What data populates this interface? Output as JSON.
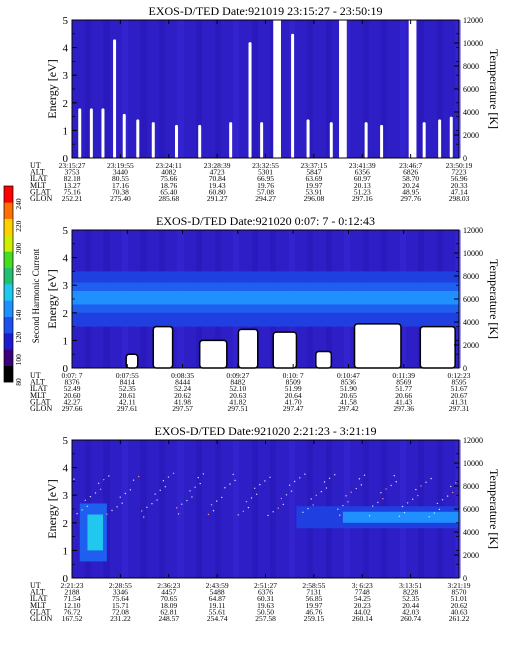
{
  "colorbar": {
    "label": "Second Harmonic Current",
    "ticks": [
      "80",
      "100",
      "120",
      "140",
      "160",
      "180",
      "200",
      "220",
      "240"
    ],
    "colors": [
      "#000000",
      "#3a007a",
      "#1c1ccc",
      "#1e50ee",
      "#2090ff",
      "#21c8ee",
      "#22c070",
      "#44dd22",
      "#ccee00",
      "#ffd000",
      "#ff7000",
      "#ff0000"
    ]
  },
  "chart_data": [
    {
      "type": "heatmap",
      "title": "EXOS-D/TED  Date:921019  23:15:27 - 23:50:19",
      "ylabel": "Energy [eV]",
      "ylabel_right": "Temperature [K]",
      "ylim": [
        0,
        5
      ],
      "ylim_right": [
        0,
        12000
      ],
      "yticks": [
        0,
        1,
        2,
        3,
        4,
        5
      ],
      "yticks_right": [
        0,
        2000,
        4000,
        6000,
        8000,
        10000,
        12000
      ],
      "background_color": "#2e1ec6",
      "data_gaps": [
        [
          0.52,
          0.54
        ],
        [
          0.69,
          0.71
        ],
        [
          0.87,
          0.89
        ]
      ],
      "white_spikes": [
        {
          "t": 0.02,
          "e": 1.8
        },
        {
          "t": 0.05,
          "e": 1.8
        },
        {
          "t": 0.08,
          "e": 1.8
        },
        {
          "t": 0.11,
          "e": 4.3
        },
        {
          "t": 0.135,
          "e": 1.6
        },
        {
          "t": 0.17,
          "e": 1.4
        },
        {
          "t": 0.21,
          "e": 1.3
        },
        {
          "t": 0.27,
          "e": 1.2
        },
        {
          "t": 0.33,
          "e": 1.2
        },
        {
          "t": 0.41,
          "e": 1.3
        },
        {
          "t": 0.46,
          "e": 4.2
        },
        {
          "t": 0.49,
          "e": 1.3
        },
        {
          "t": 0.57,
          "e": 4.5
        },
        {
          "t": 0.61,
          "e": 1.4
        },
        {
          "t": 0.67,
          "e": 1.3
        },
        {
          "t": 0.76,
          "e": 1.3
        },
        {
          "t": 0.8,
          "e": 1.2
        },
        {
          "t": 0.91,
          "e": 1.3
        },
        {
          "t": 0.95,
          "e": 1.4
        },
        {
          "t": 0.98,
          "e": 1.5
        }
      ],
      "orbit_table": {
        "rows": [
          "UT",
          "ALT",
          "ILAT",
          "MLT",
          "GLAT",
          "GLON"
        ],
        "values": [
          [
            "23:15:27",
            "23:19:55",
            "23:24:11",
            "23:28:39",
            "23:32:55",
            "23:37:15",
            "23:41:39",
            "23:46:7",
            "23:50:19"
          ],
          [
            "3753",
            "3440",
            "4082",
            "4723",
            "5301",
            "5847",
            "6356",
            "6826",
            "7223"
          ],
          [
            "82.18",
            "80.55",
            "75.66",
            "70.84",
            "66.95",
            "63.69",
            "60.97",
            "58.70",
            "56.96"
          ],
          [
            "13.27",
            "17.16",
            "18.76",
            "19.43",
            "19.76",
            "19.97",
            "20.13",
            "20.24",
            "20.33"
          ],
          [
            "75.16",
            "70.38",
            "65.40",
            "60.80",
            "57.08",
            "53.91",
            "51.23",
            "48.95",
            "47.14"
          ],
          [
            "252.21",
            "275.40",
            "285.68",
            "291.27",
            "294.27",
            "296.08",
            "297.16",
            "297.76",
            "298.03"
          ]
        ]
      }
    },
    {
      "type": "heatmap",
      "title": "EXOS-D/TED   Date:921020   0:07: 7 - 0:12:43",
      "ylabel": "Energy [eV]",
      "ylabel_right": "Temperature [K]",
      "ylim": [
        0,
        5
      ],
      "ylim_right": [
        0,
        12000
      ],
      "yticks": [
        0,
        1,
        2,
        3,
        4,
        5
      ],
      "yticks_right": [
        0,
        2000,
        4000,
        6000,
        8000,
        10000,
        12000
      ],
      "background_color": "#2e1ec6",
      "bands": [
        {
          "e0": 1.5,
          "e1": 2.0,
          "color": "#1f3fe0"
        },
        {
          "e0": 2.0,
          "e1": 2.3,
          "color": "#1f5ff0"
        },
        {
          "e0": 2.3,
          "e1": 2.8,
          "color": "#2090ff"
        },
        {
          "e0": 2.8,
          "e1": 3.1,
          "color": "#1f5ff0"
        },
        {
          "e0": 3.1,
          "e1": 3.5,
          "color": "#1f3fe0"
        }
      ],
      "white_regions": [
        {
          "t0": 0.14,
          "t1": 0.17,
          "e": 0.5
        },
        {
          "t0": 0.21,
          "t1": 0.26,
          "e": 1.5
        },
        {
          "t0": 0.33,
          "t1": 0.4,
          "e": 1.0
        },
        {
          "t0": 0.43,
          "t1": 0.48,
          "e": 1.4
        },
        {
          "t0": 0.52,
          "t1": 0.58,
          "e": 1.3
        },
        {
          "t0": 0.63,
          "t1": 0.67,
          "e": 0.6
        },
        {
          "t0": 0.73,
          "t1": 0.85,
          "e": 1.6
        },
        {
          "t0": 0.9,
          "t1": 0.99,
          "e": 1.5
        }
      ],
      "orbit_table": {
        "rows": [
          "UT",
          "ALT",
          "ILAT",
          "MLT",
          "GLAT",
          "GLON"
        ],
        "values": [
          [
            "0:07: 7",
            "0:07:55",
            "0:08:35",
            "0:09:27",
            "0:10: 7",
            "0:10:47",
            "0:11:39",
            "0:12:23"
          ],
          [
            "8376",
            "8414",
            "8444",
            "8482",
            "8509",
            "8536",
            "8569",
            "8595"
          ],
          [
            "52.49",
            "52.35",
            "52.24",
            "52.10",
            "51.99",
            "51.90",
            "51.77",
            "51.67"
          ],
          [
            "20.60",
            "20.61",
            "20.62",
            "20.63",
            "20.64",
            "20.65",
            "20.66",
            "20.67"
          ],
          [
            "42.27",
            "42.11",
            "41.98",
            "41.82",
            "41.70",
            "41.58",
            "41.43",
            "41.31"
          ],
          [
            "297.66",
            "297.61",
            "297.57",
            "297.51",
            "297.47",
            "297.42",
            "297.36",
            "297.31"
          ]
        ]
      }
    },
    {
      "type": "heatmap",
      "title": "EXOS-D/TED   Date:921020   2:21:23 - 3:21:19",
      "ylabel": "Energy [eV]",
      "ylabel_right": "Temperature [K]",
      "ylim": [
        0,
        5
      ],
      "ylim_right": [
        0,
        12000
      ],
      "yticks": [
        0,
        1,
        2,
        3,
        4,
        5
      ],
      "yticks_right": [
        0,
        2000,
        4000,
        6000,
        8000,
        10000,
        12000
      ],
      "background_color": "#2e1ec6",
      "features": [
        {
          "t0": 0.02,
          "t1": 0.09,
          "e0": 0.6,
          "e1": 2.7,
          "color": "#1f5ff0"
        },
        {
          "t0": 0.04,
          "t1": 0.08,
          "e0": 1.0,
          "e1": 2.3,
          "color": "#21c8ee"
        },
        {
          "t0": 0.58,
          "t1": 1.0,
          "e0": 1.8,
          "e1": 2.6,
          "color": "#1f3fe0"
        },
        {
          "t0": 0.7,
          "t1": 1.0,
          "e0": 2.0,
          "e1": 2.4,
          "color": "#2090ff"
        }
      ],
      "orbit_table": {
        "rows": [
          "UT",
          "ALT",
          "ILAT",
          "MLT",
          "GLAT",
          "GLON"
        ],
        "values": [
          [
            "2:21:23",
            "2:28:55",
            "2:36:23",
            "2:43:59",
            "2:51:27",
            "2:58:55",
            "3: 6:23",
            "3:13:51",
            "3:21:19"
          ],
          [
            "2188",
            "3346",
            "4457",
            "5488",
            "6376",
            "7131",
            "7748",
            "8228",
            "8570"
          ],
          [
            "71.54",
            "75.64",
            "70.65",
            "64.87",
            "60.31",
            "56.85",
            "54.25",
            "52.35",
            "51.01"
          ],
          [
            "12.10",
            "15.71",
            "18.09",
            "19.11",
            "19.63",
            "19.97",
            "20.23",
            "20.44",
            "20.62"
          ],
          [
            "76.72",
            "72.08",
            "62.81",
            "55.61",
            "50.50",
            "46.76",
            "44.02",
            "42.03",
            "40.63"
          ],
          [
            "167.52",
            "231.22",
            "248.57",
            "254.74",
            "257.58",
            "259.15",
            "260.14",
            "260.74",
            "261.22"
          ]
        ]
      }
    }
  ]
}
